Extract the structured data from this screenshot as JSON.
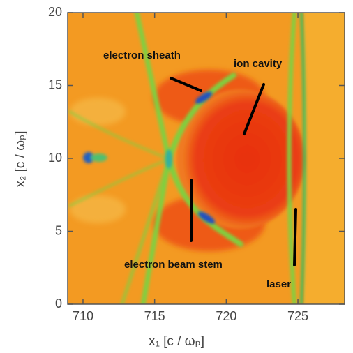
{
  "chart_data": {
    "type": "heatmap",
    "x_label": "x₁ [c / ωₚ]",
    "y_label": "x₂ [c / ωₚ]",
    "xlim": [
      708.93,
      728.26
    ],
    "xticks": [
      710,
      715,
      720,
      725
    ],
    "ylim": [
      0,
      20
    ],
    "yticks": [
      0,
      5,
      10,
      15,
      20
    ],
    "annotations": [
      "electron sheath",
      "ion cavity",
      "electron beam stem",
      "laser"
    ]
  }
}
